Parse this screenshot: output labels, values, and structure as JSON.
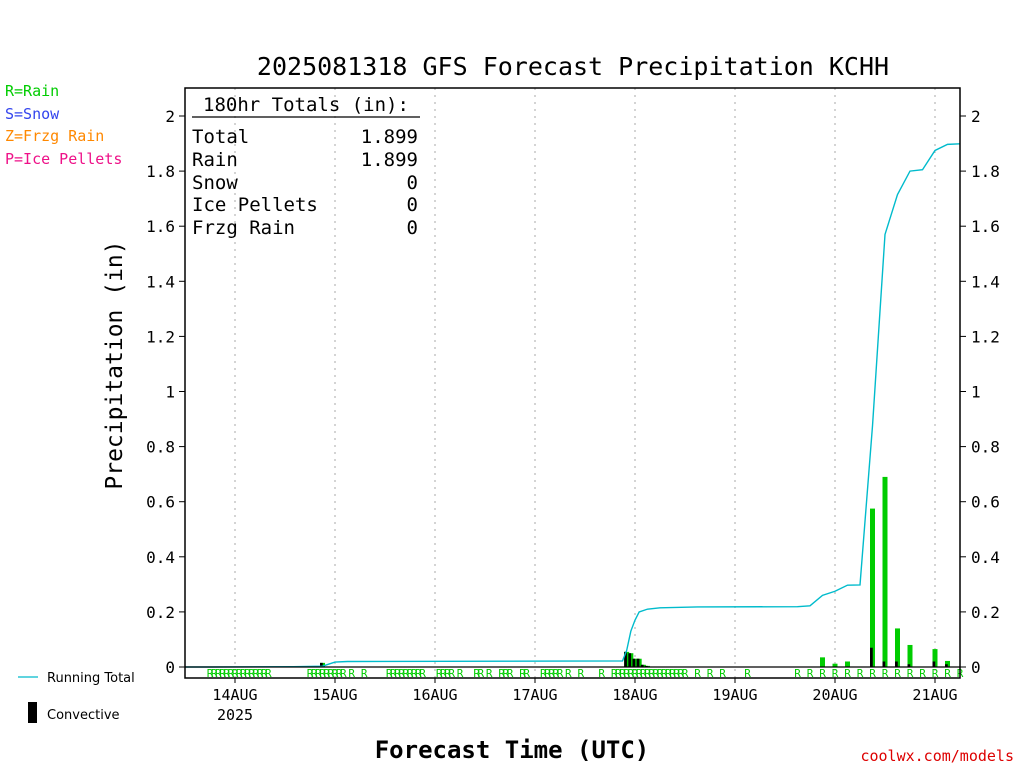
{
  "chart_data": {
    "type": "bar",
    "title": "2025081318 GFS Forecast Precipitation KCHH",
    "xlabel": "Forecast Time (UTC)",
    "ylabel": "Precipitation (in)",
    "ylim": [
      0,
      2.1
    ],
    "xlim_hours": [
      -6,
      180
    ],
    "y_ticks": [
      0,
      0.2,
      0.4,
      0.6,
      0.8,
      1,
      1.2,
      1.4,
      1.6,
      1.8,
      2
    ],
    "y_tick_labels": [
      "0",
      "0.2",
      "0.4",
      "0.6",
      "0.8",
      "1",
      "1.2",
      "1.4",
      "1.6",
      "1.8",
      "2"
    ],
    "x_ticks": [
      {
        "label": "14AUG",
        "hour": 6
      },
      {
        "label": "15AUG",
        "hour": 30
      },
      {
        "label": "16AUG",
        "hour": 54
      },
      {
        "label": "17AUG",
        "hour": 78
      },
      {
        "label": "18AUG",
        "hour": 102
      },
      {
        "label": "19AUG",
        "hour": 126
      },
      {
        "label": "20AUG",
        "hour": 150
      },
      {
        "label": "21AUG",
        "hour": 174
      }
    ],
    "year_label": "2025",
    "grid": "vertical dotted lines at day boundaries",
    "precip_type_legend": [
      {
        "label": "R=Rain",
        "color": "#00cc00"
      },
      {
        "label": "S=Snow",
        "color": "#3344ee"
      },
      {
        "label": "Z=Frzg Rain",
        "color": "#ff8800"
      },
      {
        "label": "P=Ice Pellets",
        "color": "#ee1188"
      }
    ],
    "series_legend": [
      {
        "label": "Running Total",
        "color": "#00bbcc"
      },
      {
        "label": "Convective",
        "color": "#000000"
      }
    ],
    "totals_box": {
      "header": "180hr Totals (in):",
      "rows": [
        {
          "label": "Total",
          "value": "1.899"
        },
        {
          "label": "Rain",
          "value": "1.899"
        },
        {
          "label": "Snow",
          "value": "0"
        },
        {
          "label": "Ice Pellets",
          "value": "0"
        },
        {
          "label": "Frzg Rain",
          "value": "0"
        }
      ]
    },
    "credit": "coolwx.com/models",
    "running_total": [
      {
        "hour": 0,
        "value": 0
      },
      {
        "hour": 20,
        "value": 0.001
      },
      {
        "hour": 27,
        "value": 0.003
      },
      {
        "hour": 30,
        "value": 0.018
      },
      {
        "hour": 33,
        "value": 0.02
      },
      {
        "hour": 99,
        "value": 0.022
      },
      {
        "hour": 100,
        "value": 0.06
      },
      {
        "hour": 101,
        "value": 0.13
      },
      {
        "hour": 102,
        "value": 0.17
      },
      {
        "hour": 103,
        "value": 0.2
      },
      {
        "hour": 105,
        "value": 0.21
      },
      {
        "hour": 108,
        "value": 0.215
      },
      {
        "hour": 117,
        "value": 0.218
      },
      {
        "hour": 141,
        "value": 0.219
      },
      {
        "hour": 144,
        "value": 0.222
      },
      {
        "hour": 147,
        "value": 0.26
      },
      {
        "hour": 150,
        "value": 0.275
      },
      {
        "hour": 153,
        "value": 0.297
      },
      {
        "hour": 156,
        "value": 0.298
      },
      {
        "hour": 159,
        "value": 0.875
      },
      {
        "hour": 162,
        "value": 1.57
      },
      {
        "hour": 165,
        "value": 1.715
      },
      {
        "hour": 168,
        "value": 1.8
      },
      {
        "hour": 171,
        "value": 1.805
      },
      {
        "hour": 174,
        "value": 1.875
      },
      {
        "hour": 177,
        "value": 1.897
      },
      {
        "hour": 180,
        "value": 1.899
      }
    ],
    "bars": [
      {
        "hour": 27,
        "total": 0.015,
        "convective": 0.015
      },
      {
        "hour": 100,
        "total": 0.055,
        "convective": 0.055
      },
      {
        "hour": 101,
        "total": 0.05,
        "convective": 0.05
      },
      {
        "hour": 102,
        "total": 0.03,
        "convective": 0.03
      },
      {
        "hour": 103,
        "total": 0.03,
        "convective": 0.03
      },
      {
        "hour": 104,
        "total": 0.008,
        "convective": 0.008
      },
      {
        "hour": 105,
        "total": 0.004,
        "convective": 0.004
      },
      {
        "hour": 147,
        "total": 0.035,
        "convective": 0
      },
      {
        "hour": 150,
        "total": 0.012,
        "convective": 0
      },
      {
        "hour": 153,
        "total": 0.02,
        "convective": 0
      },
      {
        "hour": 159,
        "total": 0.575,
        "convective": 0.07
      },
      {
        "hour": 162,
        "total": 0.69,
        "convective": 0.02
      },
      {
        "hour": 165,
        "total": 0.14,
        "convective": 0.02
      },
      {
        "hour": 168,
        "total": 0.08,
        "convective": 0.01
      },
      {
        "hour": 174,
        "total": 0.065,
        "convective": 0.02
      },
      {
        "hour": 177,
        "total": 0.022,
        "convective": 0.01
      }
    ],
    "ptype_marks": [
      {
        "hour": 0,
        "label": "R"
      },
      {
        "hour": 1,
        "label": "R"
      },
      {
        "hour": 2,
        "label": "R"
      },
      {
        "hour": 3,
        "label": "R"
      },
      {
        "hour": 4,
        "label": "R"
      },
      {
        "hour": 5,
        "label": "R"
      },
      {
        "hour": 6,
        "label": "R"
      },
      {
        "hour": 7,
        "label": "R"
      },
      {
        "hour": 8,
        "label": "R"
      },
      {
        "hour": 9,
        "label": "R"
      },
      {
        "hour": 10,
        "label": "R"
      },
      {
        "hour": 11,
        "label": "R"
      },
      {
        "hour": 12,
        "label": "R"
      },
      {
        "hour": 13,
        "label": "R"
      },
      {
        "hour": 14,
        "label": "R"
      },
      {
        "hour": 24,
        "label": "R"
      },
      {
        "hour": 25,
        "label": "R"
      },
      {
        "hour": 26,
        "label": "R"
      },
      {
        "hour": 27,
        "label": "R"
      },
      {
        "hour": 28,
        "label": "R"
      },
      {
        "hour": 29,
        "label": "R"
      },
      {
        "hour": 30,
        "label": "R"
      },
      {
        "hour": 31,
        "label": "R"
      },
      {
        "hour": 32,
        "label": "R"
      },
      {
        "hour": 34,
        "label": "R"
      },
      {
        "hour": 37,
        "label": "R"
      },
      {
        "hour": 43,
        "label": "R"
      },
      {
        "hour": 44,
        "label": "R"
      },
      {
        "hour": 45,
        "label": "R"
      },
      {
        "hour": 46,
        "label": "R"
      },
      {
        "hour": 47,
        "label": "R"
      },
      {
        "hour": 48,
        "label": "R"
      },
      {
        "hour": 49,
        "label": "R"
      },
      {
        "hour": 50,
        "label": "R"
      },
      {
        "hour": 51,
        "label": "R"
      },
      {
        "hour": 55,
        "label": "R"
      },
      {
        "hour": 56,
        "label": "R"
      },
      {
        "hour": 57,
        "label": "R"
      },
      {
        "hour": 58,
        "label": "R"
      },
      {
        "hour": 60,
        "label": "R"
      },
      {
        "hour": 64,
        "label": "R"
      },
      {
        "hour": 65,
        "label": "R"
      },
      {
        "hour": 67,
        "label": "R"
      },
      {
        "hour": 70,
        "label": "R"
      },
      {
        "hour": 71,
        "label": "R"
      },
      {
        "hour": 72,
        "label": "R"
      },
      {
        "hour": 75,
        "label": "R"
      },
      {
        "hour": 76,
        "label": "R"
      },
      {
        "hour": 80,
        "label": "R"
      },
      {
        "hour": 81,
        "label": "R"
      },
      {
        "hour": 82,
        "label": "R"
      },
      {
        "hour": 83,
        "label": "R"
      },
      {
        "hour": 84,
        "label": "R"
      },
      {
        "hour": 86,
        "label": "R"
      },
      {
        "hour": 89,
        "label": "R"
      },
      {
        "hour": 94,
        "label": "R"
      },
      {
        "hour": 97,
        "label": "R"
      },
      {
        "hour": 98,
        "label": "R"
      },
      {
        "hour": 99,
        "label": "R"
      },
      {
        "hour": 100,
        "label": "R"
      },
      {
        "hour": 101,
        "label": "R"
      },
      {
        "hour": 102,
        "label": "R"
      },
      {
        "hour": 103,
        "label": "R"
      },
      {
        "hour": 104,
        "label": "R"
      },
      {
        "hour": 105,
        "label": "R"
      },
      {
        "hour": 106,
        "label": "R"
      },
      {
        "hour": 107,
        "label": "R"
      },
      {
        "hour": 108,
        "label": "R"
      },
      {
        "hour": 109,
        "label": "R"
      },
      {
        "hour": 110,
        "label": "R"
      },
      {
        "hour": 111,
        "label": "R"
      },
      {
        "hour": 112,
        "label": "R"
      },
      {
        "hour": 113,
        "label": "R"
      },
      {
        "hour": 114,
        "label": "R"
      },
      {
        "hour": 117,
        "label": "R"
      },
      {
        "hour": 120,
        "label": "R"
      },
      {
        "hour": 123,
        "label": "R"
      },
      {
        "hour": 129,
        "label": "R"
      },
      {
        "hour": 141,
        "label": "R"
      },
      {
        "hour": 144,
        "label": "R"
      },
      {
        "hour": 147,
        "label": "R"
      },
      {
        "hour": 150,
        "label": "R"
      },
      {
        "hour": 153,
        "label": "R"
      },
      {
        "hour": 156,
        "label": "R"
      },
      {
        "hour": 159,
        "label": "R"
      },
      {
        "hour": 162,
        "label": "R"
      },
      {
        "hour": 165,
        "label": "R"
      },
      {
        "hour": 168,
        "label": "R"
      },
      {
        "hour": 171,
        "label": "R"
      },
      {
        "hour": 174,
        "label": "R"
      },
      {
        "hour": 177,
        "label": "R"
      },
      {
        "hour": 180,
        "label": "R"
      }
    ],
    "colors": {
      "rain_bar": "#00cc00",
      "convective_bar": "#000000",
      "running_total_line": "#00bbcc",
      "grid": "#aaaaaa",
      "axis": "#000000",
      "credit": "#dd0000"
    }
  }
}
